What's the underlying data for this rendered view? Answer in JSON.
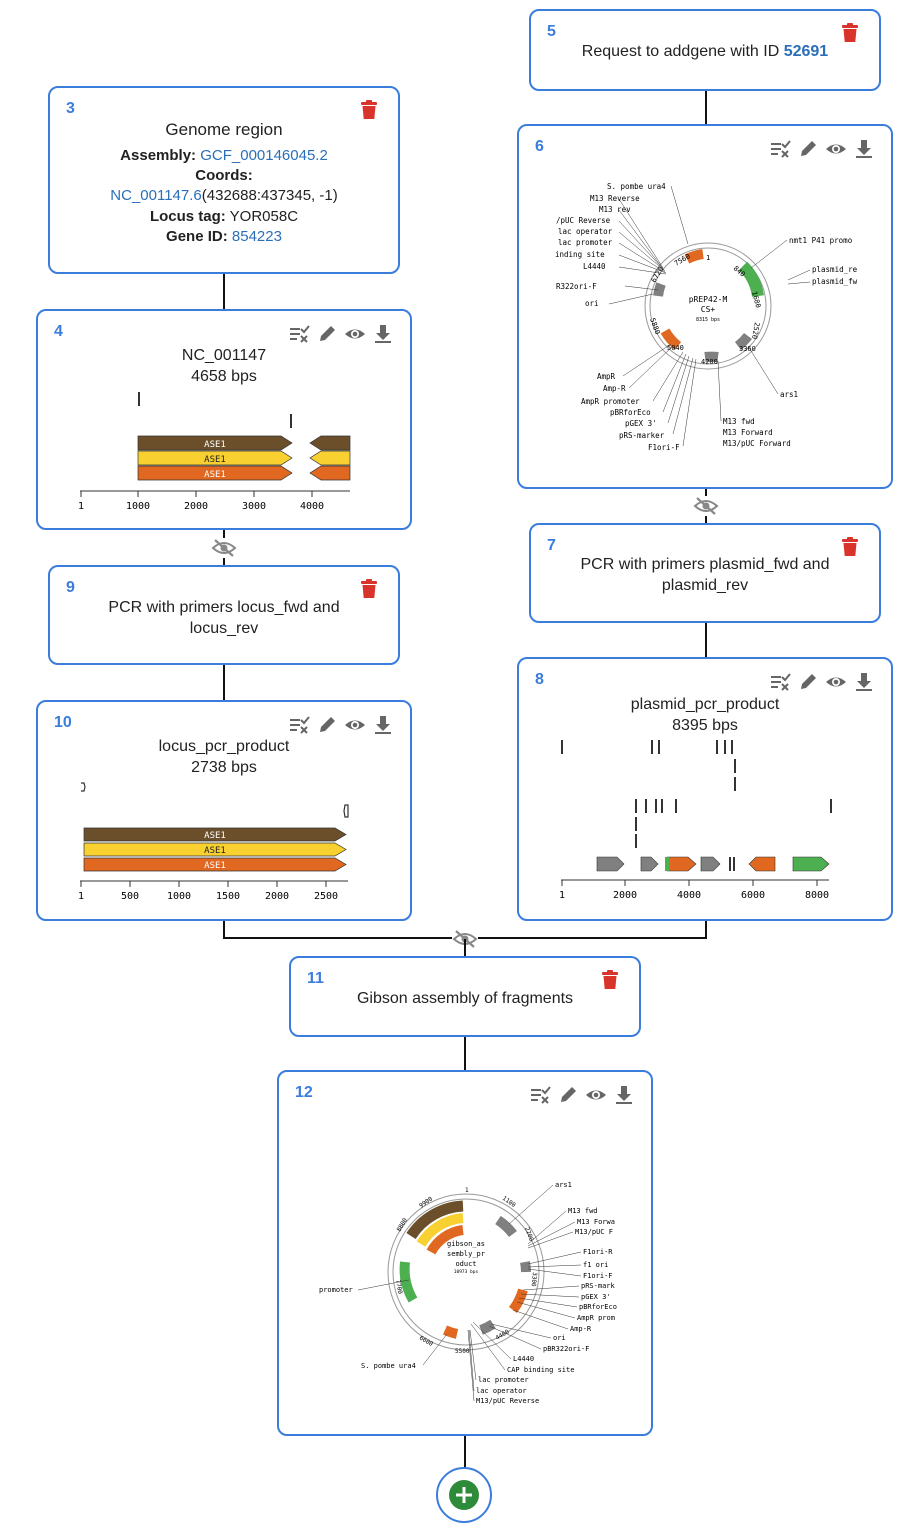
{
  "nodes": {
    "n3": {
      "id": "3",
      "title": "Genome region",
      "assembly_label": "Assembly:",
      "assembly_value": "GCF_000146045.2",
      "coords_label": "Coords:",
      "coords_link": "NC_001147.6",
      "coords_rest": "(432688:437345, -1)",
      "locus_label": "Locus tag:",
      "locus_value": " YOR058C",
      "gene_label": "Gene ID:",
      "gene_value": " 854223"
    },
    "n4": {
      "id": "4",
      "name": "NC_001147",
      "size": "4658 bps",
      "features": [
        "ASE1",
        "ASE1",
        "ASE1"
      ],
      "ticks": [
        "1",
        "1000",
        "2000",
        "3000",
        "4000"
      ]
    },
    "n5": {
      "id": "5",
      "text": "Request to addgene with ID ",
      "addgene_id": "52691"
    },
    "n6": {
      "id": "6",
      "plasmid_name": "pREP42-M",
      "plasmid_name2": "CS+",
      "plasmid_size": "8315 bps",
      "labels_left": [
        "S. pombe ura4",
        "M13 Reverse",
        "M13 rev",
        "/pUC Reverse",
        "lac operator",
        "lac promoter",
        "inding site",
        "L4440",
        "R322ori-F",
        "ori",
        "AmpR",
        "Amp-R",
        "AmpR promoter",
        "pBRforEco",
        "pGEX 3'",
        "pRS-marker",
        "F1ori-F"
      ],
      "labels_right": [
        "nmt1 P41 promo",
        "plasmid_re",
        "plasmid_fw",
        "ars1",
        "M13 fwd",
        "M13 Forward",
        "M13/pUC Forward"
      ],
      "ring_ticks": [
        "1",
        "840",
        "1680",
        "2520",
        "3360",
        "4200",
        "5040",
        "5880",
        "6720",
        "7560"
      ]
    },
    "n7": {
      "id": "7",
      "text": "PCR with primers plasmid_fwd and plasmid_rev"
    },
    "n8": {
      "id": "8",
      "name": "plasmid_pcr_product",
      "size": "8395 bps",
      "ticks": [
        "1",
        "2000",
        "4000",
        "6000",
        "8000"
      ]
    },
    "n9": {
      "id": "9",
      "text": "PCR with primers locus_fwd and locus_rev"
    },
    "n10": {
      "id": "10",
      "name": "locus_pcr_product",
      "size": "2738 bps",
      "features": [
        "ASE1",
        "ASE1",
        "ASE1"
      ],
      "ticks": [
        "1",
        "500",
        "1000",
        "1500",
        "2000",
        "2500"
      ]
    },
    "n11": {
      "id": "11",
      "text": "Gibson assembly of fragments"
    },
    "n12": {
      "id": "12",
      "plasmid_name": "gibson_as",
      "plasmid_name2": "sembly_pr",
      "plasmid_name3": "oduct",
      "plasmid_size": "10973 bps",
      "labels_right": [
        "ars1",
        "M13 fwd",
        "M13 Forwa",
        "M13/pUC F",
        "F1ori-R",
        "f1 ori",
        "F1ori-F",
        "pRS-mark",
        "pGEX 3'",
        "pBRforEco",
        "AmpR prom",
        "Amp-R",
        "ori",
        "pBR322ori-F",
        "L4440",
        "CAP binding site",
        "lac promoter",
        "lac operator",
        "M13/pUC Reverse"
      ],
      "labels_left": [
        "promoter",
        "S. pombe ura4"
      ],
      "ring_ticks": [
        "1",
        "1100",
        "2200",
        "3300",
        "4400",
        "5500",
        "6600",
        "7700",
        "8800",
        "9900"
      ],
      "features": [
        "ASE1",
        "ASE1",
        "ASE1"
      ]
    }
  },
  "colors": {
    "accent": "#3b7ddd",
    "trash": "#d9342b",
    "brown": "#6b4f2a",
    "yellow": "#f8d030",
    "orange": "#e06820",
    "green": "#4caf50",
    "gray": "#808080",
    "add_button": "#2e8b3a"
  },
  "icons": [
    "trash-icon",
    "select-primers-icon",
    "edit-icon",
    "eye-icon",
    "download-icon",
    "eye-off-icon",
    "plus-icon"
  ]
}
